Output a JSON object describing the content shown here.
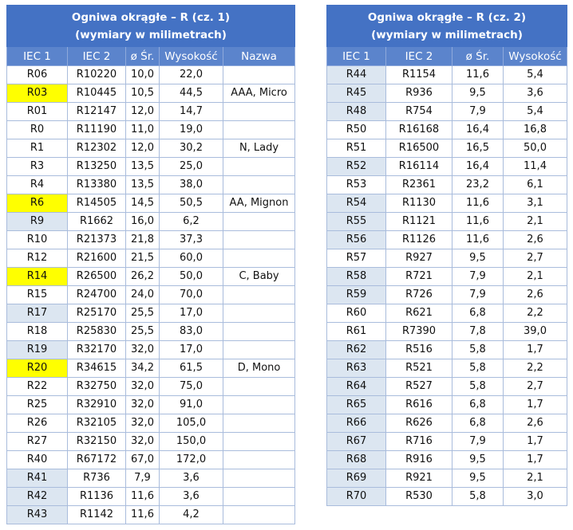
{
  "tables": [
    {
      "title": [
        "Ogniwa okrągłe – R (cz. 1)",
        "(wymiary w milimetrach)"
      ],
      "headers": [
        "IEC 1",
        "IEC 2",
        "ø Śr.",
        "Wysokość",
        "Nazwa"
      ],
      "rows": [
        [
          "R06",
          "R10220",
          "10,0",
          "22,0",
          null
        ],
        [
          "R03",
          "R10445",
          "10,5",
          "44,5",
          "AAA, Micro"
        ],
        [
          "R01",
          "R12147",
          "12,0",
          "14,7",
          null
        ],
        [
          "R0",
          "R11190",
          "11,0",
          "19,0",
          null
        ],
        [
          "R1",
          "R12302",
          "12,0",
          "30,2",
          "N, Lady"
        ],
        [
          "R3",
          "R13250",
          "13,5",
          "25,0",
          null
        ],
        [
          "R4",
          "R13380",
          "13,5",
          "38,0",
          null
        ],
        [
          "R6",
          "R14505",
          "14,5",
          "50,5",
          "AA, Mignon"
        ],
        [
          "R9",
          "R1662",
          "16,0",
          "6,2",
          null
        ],
        [
          "R10",
          "R21373",
          "21,8",
          "37,3",
          null
        ],
        [
          "R12",
          "R21600",
          "21,5",
          "60,0",
          null
        ],
        [
          "R14",
          "R26500",
          "26,2",
          "50,0",
          "C, Baby"
        ],
        [
          "R15",
          "R24700",
          "24,0",
          "70,0",
          null
        ],
        [
          "R17",
          "R25170",
          "25,5",
          "17,0",
          null
        ],
        [
          "R18",
          "R25830",
          "25,5",
          "83,0",
          null
        ],
        [
          "R19",
          "R32170",
          "32,0",
          "17,0",
          null
        ],
        [
          "R20",
          "R34615",
          "34,2",
          "61,5",
          "D, Mono"
        ],
        [
          "R22",
          "R32750",
          "32,0",
          "75,0",
          null
        ],
        [
          "R25",
          "R32910",
          "32,0",
          "91,0",
          null
        ],
        [
          "R26",
          "R32105",
          "32,0",
          "105,0",
          null
        ],
        [
          "R27",
          "R32150",
          "32,0",
          "150,0",
          null
        ],
        [
          "R40",
          "R67172",
          "67,0",
          "172,0",
          null
        ],
        [
          "R41",
          "R736",
          "7,9",
          "3,6",
          null
        ],
        [
          "R42",
          "R1136",
          "11,6",
          "3,6",
          null
        ],
        [
          "R43",
          "R1142",
          "11,6",
          "4,2",
          null
        ]
      ],
      "first_cell_fill": [
        "#ffffff",
        "#ffff00",
        "#ffffff",
        "#ffffff",
        "#ffffff",
        "#ffffff",
        "#ffffff",
        "#ffff00",
        "#dce6f1",
        "#ffffff",
        "#ffffff",
        "#ffff00",
        "#ffffff",
        "#dce6f1",
        "#ffffff",
        "#dce6f1",
        "#ffff00",
        "#ffffff",
        "#ffffff",
        "#ffffff",
        "#ffffff",
        "#ffffff",
        "#dce6f1",
        "#dce6f1",
        "#dce6f1"
      ]
    },
    {
      "title": [
        "Ogniwa okrągłe – R (cz. 2)",
        "(wymiary w milimetrach)"
      ],
      "headers": [
        "IEC 1",
        "IEC 2",
        "ø Śr.",
        "Wysokość"
      ],
      "rows": [
        [
          "R44",
          "R1154",
          "11,6",
          "5,4"
        ],
        [
          "R45",
          "R936",
          "9,5",
          "3,6"
        ],
        [
          "R48",
          "R754",
          "7,9",
          "5,4"
        ],
        [
          "R50",
          "R16168",
          "16,4",
          "16,8"
        ],
        [
          "R51",
          "R16500",
          "16,5",
          "50,0"
        ],
        [
          "R52",
          "R16114",
          "16,4",
          "11,4"
        ],
        [
          "R53",
          "R2361",
          "23,2",
          "6,1"
        ],
        [
          "R54",
          "R1130",
          "11,6",
          "3,1"
        ],
        [
          "R55",
          "R1121",
          "11,6",
          "2,1"
        ],
        [
          "R56",
          "R1126",
          "11,6",
          "2,6"
        ],
        [
          "R57",
          "R927",
          "9,5",
          "2,7"
        ],
        [
          "R58",
          "R721",
          "7,9",
          "2,1"
        ],
        [
          "R59",
          "R726",
          "7,9",
          "2,6"
        ],
        [
          "R60",
          "R621",
          "6,8",
          "2,2"
        ],
        [
          "R61",
          "R7390",
          "7,8",
          "39,0"
        ],
        [
          "R62",
          "R516",
          "5,8",
          "1,7"
        ],
        [
          "R63",
          "R521",
          "5,8",
          "2,2"
        ],
        [
          "R64",
          "R527",
          "5,8",
          "2,7"
        ],
        [
          "R65",
          "R616",
          "6,8",
          "1,7"
        ],
        [
          "R66",
          "R626",
          "6,8",
          "2,6"
        ],
        [
          "R67",
          "R716",
          "7,9",
          "1,7"
        ],
        [
          "R68",
          "R916",
          "9,5",
          "1,7"
        ],
        [
          "R69",
          "R921",
          "9,5",
          "2,1"
        ],
        [
          "R70",
          "R530",
          "5,8",
          "3,0"
        ]
      ],
      "first_cell_fill": [
        "#dce6f1",
        "#dce6f1",
        "#dce6f1",
        "#ffffff",
        "#ffffff",
        "#dce6f1",
        "#ffffff",
        "#dce6f1",
        "#dce6f1",
        "#dce6f1",
        "#ffffff",
        "#dce6f1",
        "#dce6f1",
        "#ffffff",
        "#ffffff",
        "#dce6f1",
        "#dce6f1",
        "#dce6f1",
        "#dce6f1",
        "#dce6f1",
        "#dce6f1",
        "#dce6f1",
        "#dce6f1",
        "#dce6f1"
      ]
    }
  ]
}
